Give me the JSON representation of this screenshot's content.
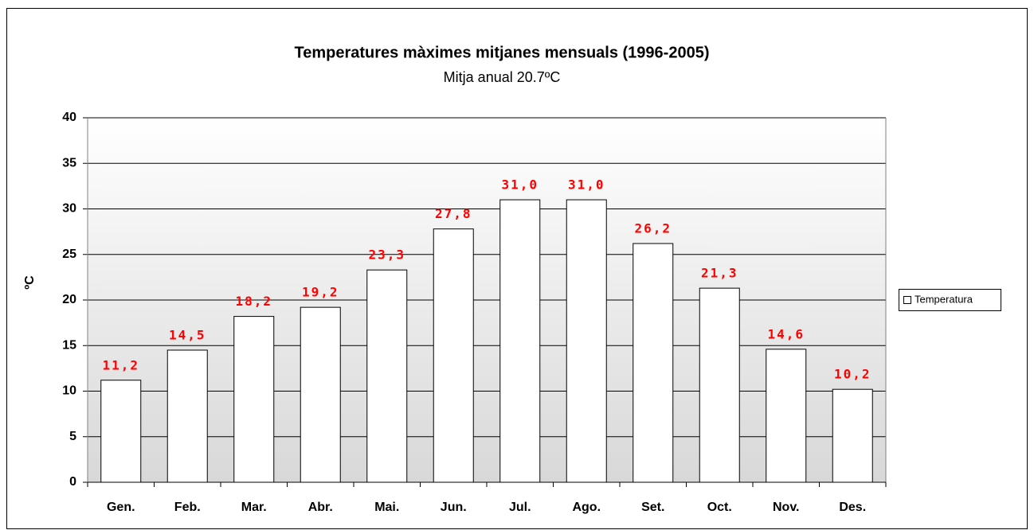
{
  "chart_data": {
    "type": "bar",
    "title": "Temperatures màximes mitjanes  mensuals (1996-2005)",
    "subtitle": "Mitja anual 20.7ºC",
    "y_label": "ºC",
    "categories": [
      "Gen.",
      "Feb.",
      "Mar.",
      "Abr.",
      "Mai.",
      "Jun.",
      "Jul.",
      "Ago.",
      "Set.",
      "Oct.",
      "Nov.",
      "Des."
    ],
    "series": [
      {
        "name": "Temperatura",
        "color": "#ffffff",
        "values": [
          11.2,
          14.5,
          18.2,
          19.2,
          23.3,
          27.8,
          31.0,
          31.0,
          26.2,
          21.3,
          14.6,
          10.2
        ],
        "value_labels": [
          "11,2",
          "14,5",
          "18,2",
          "19,2",
          "23,3",
          "27,8",
          "31,0",
          "31,0",
          "26,2",
          "21,3",
          "14,6",
          "10,2"
        ]
      }
    ],
    "ylim": [
      0,
      40
    ],
    "yticks": [
      0,
      5,
      10,
      15,
      20,
      25,
      30,
      35,
      40
    ],
    "grid": true,
    "legend": "right"
  }
}
